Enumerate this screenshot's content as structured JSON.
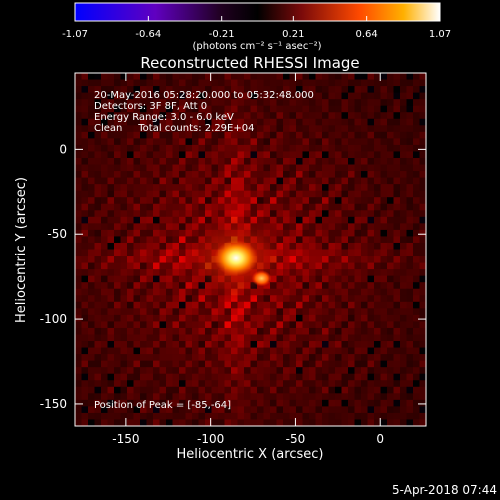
{
  "chart_data": {
    "type": "heatmap",
    "title": "Reconstructed RHESSI Image",
    "xlabel": "Heliocentric X (arcsec)",
    "ylabel": "Heliocentric Y (arcsec)",
    "xlim": [
      -180,
      27
    ],
    "ylim": [
      -163,
      45
    ],
    "xticks": [
      -150,
      -100,
      -50,
      0
    ],
    "yticks": [
      0,
      -50,
      -100,
      -150
    ],
    "colorbar": {
      "min": -1.07,
      "max": 1.07,
      "ticks": [
        "-1.07",
        "-0.64",
        "-0.21",
        "0.21",
        "0.64",
        "1.07"
      ],
      "units": "(photons cm⁻² s⁻¹ asec⁻²)",
      "colormap": "rainbow-to-heat"
    },
    "annotations": [
      "20-May-2016 05:28:20.000 to 05:32:48.000",
      "Detectors: 3F 8F, Att 0",
      "Energy Range: 3.0 - 6.0 keV",
      "Clean     Total counts: 2.29E+04"
    ],
    "peak_label": "Position of Peak = [-85,-64]",
    "peak": {
      "x": -85,
      "y": -64,
      "value": 1.07
    },
    "secondary_source": {
      "x": -70,
      "y": -76
    }
  },
  "footer": {
    "timestamp": "5-Apr-2018 07:44"
  }
}
